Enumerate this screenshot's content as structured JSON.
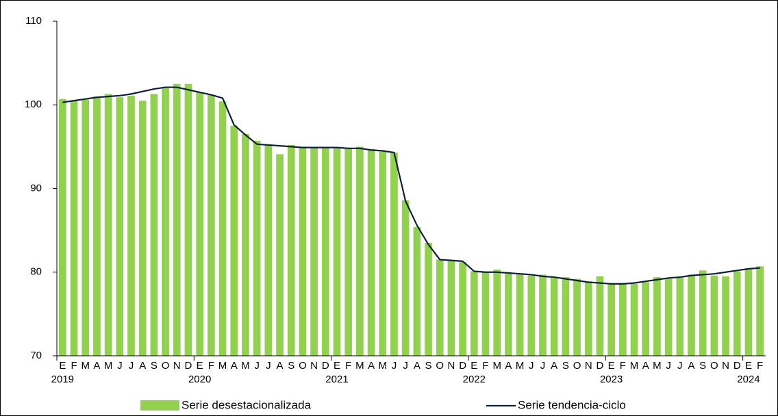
{
  "chart_data": {
    "type": "bar_line",
    "x_months": [
      "E",
      "F",
      "M",
      "A",
      "M",
      "J",
      "J",
      "A",
      "S",
      "O",
      "N",
      "D",
      "E",
      "F",
      "M",
      "A",
      "M",
      "J",
      "J",
      "A",
      "S",
      "O",
      "N",
      "D",
      "E",
      "F",
      "M",
      "A",
      "M",
      "J",
      "J",
      "A",
      "S",
      "O",
      "N",
      "D",
      "E",
      "F",
      "M",
      "A",
      "M",
      "J",
      "J",
      "A",
      "S",
      "O",
      "N",
      "D",
      "E",
      "F",
      "M",
      "A",
      "M",
      "J",
      "J",
      "A",
      "S",
      "O",
      "N",
      "D",
      "E",
      "F"
    ],
    "x_years": [
      "2019",
      null,
      null,
      null,
      null,
      null,
      null,
      null,
      null,
      null,
      null,
      null,
      "2020",
      null,
      null,
      null,
      null,
      null,
      null,
      null,
      null,
      null,
      null,
      null,
      "2021",
      null,
      null,
      null,
      null,
      null,
      null,
      null,
      null,
      null,
      null,
      null,
      "2022",
      null,
      null,
      null,
      null,
      null,
      null,
      null,
      null,
      null,
      null,
      null,
      "2023",
      null,
      null,
      null,
      null,
      null,
      null,
      null,
      null,
      null,
      null,
      null,
      "2024",
      null
    ],
    "series": [
      {
        "name": "Serie desestacionalizada",
        "kind": "bar",
        "color": "#92d050",
        "values": [
          100.7,
          100.5,
          100.6,
          101.0,
          101.3,
          100.9,
          101.1,
          100.5,
          101.3,
          102.0,
          102.5,
          102.5,
          101.5,
          101.2,
          100.4,
          97.5,
          96.5,
          95.7,
          95.3,
          94.1,
          95.2,
          95.0,
          94.9,
          94.9,
          94.8,
          94.8,
          95.0,
          94.7,
          94.4,
          94.3,
          88.6,
          85.4,
          83.5,
          81.5,
          81.3,
          81.2,
          80.1,
          80.0,
          80.3,
          79.8,
          79.8,
          79.6,
          79.7,
          79.3,
          79.4,
          79.2,
          78.9,
          79.5,
          78.6,
          78.7,
          78.6,
          78.8,
          79.4,
          79.2,
          79.4,
          79.7,
          80.2,
          79.6,
          79.5,
          80.1,
          80.3,
          80.7
        ]
      },
      {
        "name": "Serie tendencia-ciclo",
        "kind": "line",
        "color": "#0d1f3c",
        "values": [
          100.3,
          100.5,
          100.7,
          100.9,
          101.0,
          101.1,
          101.3,
          101.6,
          101.9,
          102.1,
          102.1,
          101.8,
          101.5,
          101.2,
          100.8,
          97.6,
          96.4,
          95.3,
          95.2,
          95.1,
          95.0,
          94.9,
          94.9,
          94.9,
          94.9,
          94.8,
          94.8,
          94.6,
          94.5,
          94.3,
          88.5,
          85.6,
          83.3,
          81.5,
          81.4,
          81.3,
          80.1,
          80.0,
          80.0,
          79.9,
          79.8,
          79.7,
          79.5,
          79.4,
          79.2,
          79.0,
          78.8,
          78.7,
          78.6,
          78.6,
          78.7,
          78.9,
          79.1,
          79.3,
          79.4,
          79.6,
          79.7,
          79.8,
          80.0,
          80.2,
          80.4,
          80.5
        ]
      }
    ],
    "ylim": [
      70,
      110
    ],
    "yticks": [
      70,
      80,
      90,
      100,
      110
    ],
    "grid": false
  }
}
